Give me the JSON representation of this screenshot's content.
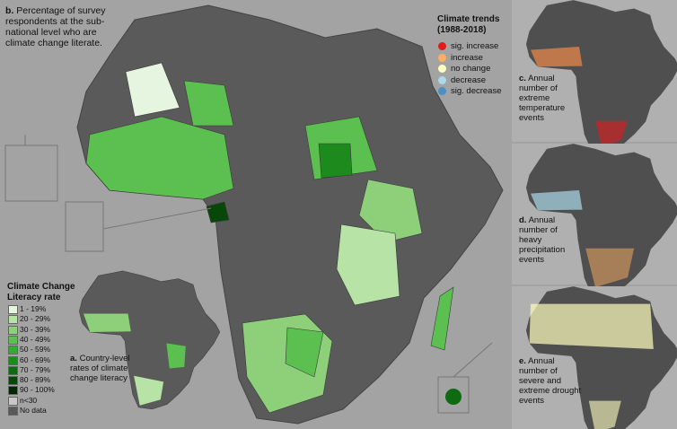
{
  "panel_b": {
    "label": "b.",
    "text": "Percentage of survey respondents at the sub-national level who are climate change literate."
  },
  "climate_trends": {
    "title": "Climate trends",
    "period": "(1988-2018)",
    "items": [
      {
        "label": "sig. increase",
        "color": "#e31a1c"
      },
      {
        "label": "increase",
        "color": "#fdae61"
      },
      {
        "label": "no change",
        "color": "#ffffbf"
      },
      {
        "label": "decrease",
        "color": "#abd9e9"
      },
      {
        "label": "sig. decrease",
        "color": "#4a8fc7"
      }
    ]
  },
  "literacy_legend": {
    "title": "Climate Change Literacy rate",
    "items": [
      {
        "label": "1 - 19%",
        "color": "#e5f5e0"
      },
      {
        "label": "20 - 29%",
        "color": "#b8e3a6"
      },
      {
        "label": "30 - 39%",
        "color": "#8ed07a"
      },
      {
        "label": "40 - 49%",
        "color": "#5cc050"
      },
      {
        "label": "50 - 59%",
        "color": "#33ac33"
      },
      {
        "label": "60 - 69%",
        "color": "#1c8a1c"
      },
      {
        "label": "70 - 79%",
        "color": "#0f6b12"
      },
      {
        "label": "80 - 89%",
        "color": "#07480a"
      },
      {
        "label": "90 - 100%",
        "color": "#022504"
      },
      {
        "label": "n<30",
        "color": "#c8c8c8"
      },
      {
        "label": "No data",
        "color": "#5a5a5a"
      }
    ]
  },
  "panel_a": {
    "label": "a.",
    "text": "Country-level rates of climate change literacy"
  },
  "panel_c": {
    "label": "c.",
    "text": "Annual number of extreme temperature events"
  },
  "panel_d": {
    "label": "d.",
    "text": "Annual number of heavy precipitation events"
  },
  "panel_e": {
    "label": "e.",
    "text": "Annual number of severe and extreme drought events"
  }
}
